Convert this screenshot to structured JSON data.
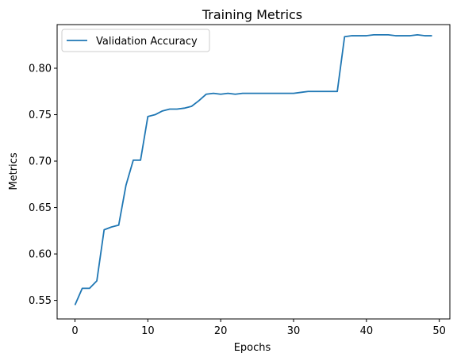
{
  "chart_data": {
    "type": "line",
    "title": "Training Metrics",
    "xlabel": "Epochs",
    "ylabel": "Metrics",
    "xlim": [
      -2.45,
      51.45
    ],
    "ylim": [
      0.53,
      0.847
    ],
    "xticks": [
      0,
      10,
      20,
      30,
      40,
      50
    ],
    "yticks": [
      0.55,
      0.6,
      0.65,
      0.7,
      0.75,
      0.8
    ],
    "ytick_labels": [
      "0.55",
      "0.60",
      "0.65",
      "0.70",
      "0.75",
      "0.80"
    ],
    "xtick_labels": [
      "0",
      "10",
      "20",
      "30",
      "40",
      "50"
    ],
    "grid": false,
    "legend_position": "top-left",
    "series": [
      {
        "name": "Validation Accuracy",
        "color": "#1f77b4",
        "x": [
          0,
          1,
          2,
          3,
          4,
          5,
          6,
          7,
          8,
          9,
          10,
          11,
          12,
          13,
          14,
          15,
          16,
          17,
          18,
          19,
          20,
          21,
          22,
          23,
          24,
          25,
          26,
          27,
          28,
          29,
          30,
          31,
          32,
          33,
          34,
          35,
          36,
          37,
          38,
          39,
          40,
          41,
          42,
          43,
          44,
          45,
          46,
          47,
          48,
          49
        ],
        "y": [
          0.545,
          0.563,
          0.563,
          0.571,
          0.626,
          0.629,
          0.631,
          0.674,
          0.701,
          0.701,
          0.748,
          0.75,
          0.754,
          0.756,
          0.756,
          0.757,
          0.759,
          0.765,
          0.772,
          0.773,
          0.772,
          0.773,
          0.772,
          0.773,
          0.773,
          0.773,
          0.773,
          0.773,
          0.773,
          0.773,
          0.773,
          0.774,
          0.775,
          0.775,
          0.775,
          0.775,
          0.775,
          0.834,
          0.835,
          0.835,
          0.835,
          0.836,
          0.836,
          0.836,
          0.835,
          0.835,
          0.835,
          0.836,
          0.835,
          0.835
        ]
      }
    ]
  }
}
